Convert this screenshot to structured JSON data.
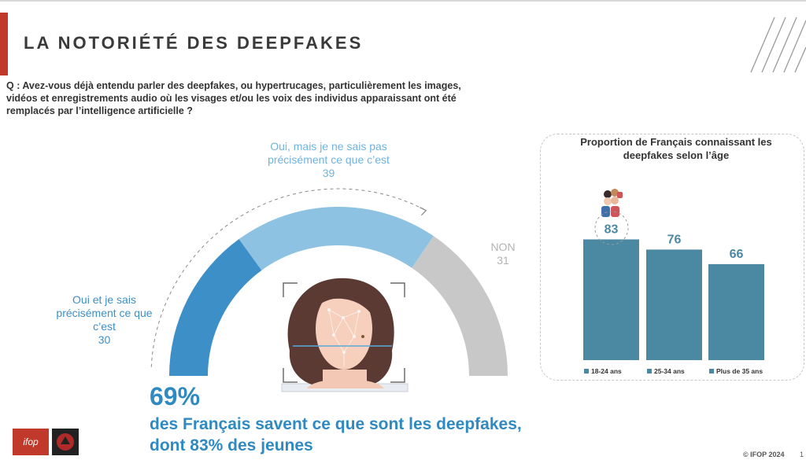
{
  "header": {
    "title": "LA NOTORIÉTÉ DES DEEPFAKES"
  },
  "question": "Q : Avez-vous déjà entendu parler des deepfakes, ou hypertrucages, particulièrement les images, vidéos et enregistrements audio où les visages et/ou les voix des individus apparaissant ont été remplacés par l’intelligence artificielle ?",
  "gauge": {
    "segments": [
      {
        "label": "Oui et je sais précisément ce que c’est",
        "value": 30,
        "color": "#3d8fc7"
      },
      {
        "label": "Oui, mais je ne sais pas précisément ce que c’est",
        "value": 39,
        "color": "#8ec2e3"
      },
      {
        "label": "NON",
        "value": 31,
        "color": "#c8c8c8"
      }
    ]
  },
  "kpi": {
    "big": "69%",
    "line1": "des Français savent ce que sont les deepfakes,",
    "line2": "dont 83% des jeunes"
  },
  "chart_data": {
    "type": "bar",
    "title": "Proportion de Français connaissant les deepfakes selon l’âge",
    "categories": [
      "18-24 ans",
      "25-34 ans",
      "Plus de 35 ans"
    ],
    "values": [
      83,
      76,
      66
    ],
    "ylim": [
      0,
      100
    ],
    "color": "#4b88a2",
    "legend": "bottom"
  },
  "footer": {
    "copyright": "© IFOP 2024",
    "page": "1",
    "logo_text": "ifop"
  }
}
